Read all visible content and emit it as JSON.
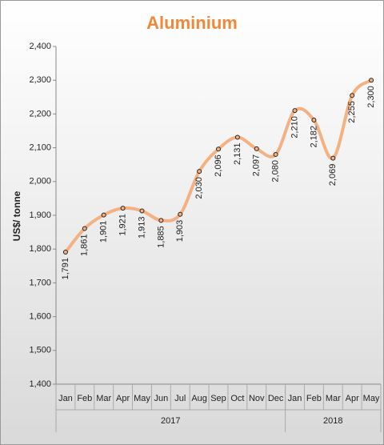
{
  "chart_data": {
    "type": "line",
    "title": "Aluminium",
    "y_label": "US$/ tonne",
    "groups": [
      {
        "label": "2017",
        "categories": [
          "Jan",
          "Feb",
          "Mar",
          "Apr",
          "May",
          "Jun",
          "Jul",
          "Aug",
          "Sep",
          "Oct",
          "Nov",
          "Dec"
        ]
      },
      {
        "label": "2018",
        "categories": [
          "Jan",
          "Feb",
          "Mar",
          "Apr",
          "May"
        ]
      }
    ],
    "values": [
      1791,
      1861,
      1901,
      1921,
      1913,
      1885,
      1903,
      2030,
      2096,
      2131,
      2097,
      2080,
      2210,
      2182,
      2069,
      2255,
      2300
    ],
    "value_labels": [
      "1,791",
      "1,861",
      "1,901",
      "1,921",
      "1,913",
      "1,885",
      "1,903",
      "2,030",
      "2,096",
      "2,131",
      "2,097",
      "2,080",
      "2,210",
      "2,182",
      "2,069",
      "2,255",
      "2,300"
    ],
    "color": "#f4b183",
    "ylim": [
      1400,
      2400
    ],
    "yticks": [
      {
        "value": 1400,
        "label": "1,400"
      },
      {
        "value": 1500,
        "label": "1,500"
      },
      {
        "value": 1600,
        "label": "1,600"
      },
      {
        "value": 1700,
        "label": "1,700"
      },
      {
        "value": 1800,
        "label": "1,800"
      },
      {
        "value": 1900,
        "label": "1,900"
      },
      {
        "value": 2000,
        "label": "2,000"
      },
      {
        "value": 2100,
        "label": "2,100"
      },
      {
        "value": 2200,
        "label": "2,200"
      },
      {
        "value": 2300,
        "label": "2,300"
      },
      {
        "value": 2400,
        "label": "2,400"
      }
    ]
  }
}
